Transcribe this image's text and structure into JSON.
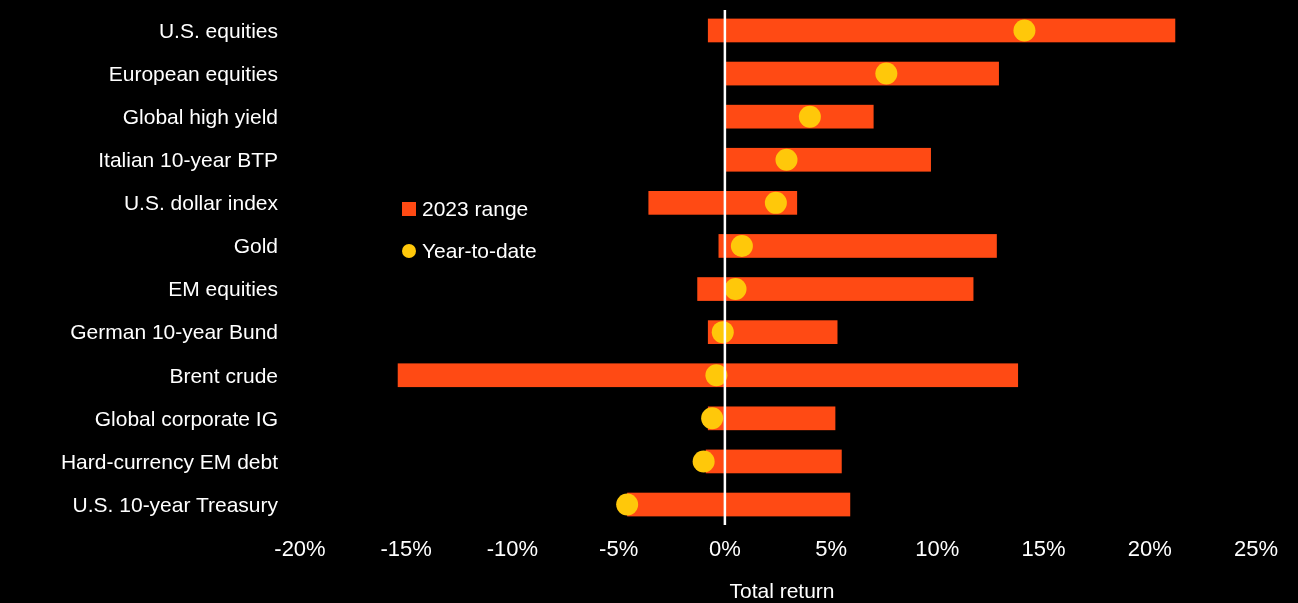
{
  "chart_data": {
    "type": "bar",
    "orientation": "horizontal",
    "xlabel": "Total return",
    "categories": [
      "U.S. equities",
      "European equities",
      "Global high yield",
      "Italian 10-year BTP",
      "U.S. dollar index",
      "Gold",
      "EM equities",
      "German 10-year Bund",
      "Brent crude",
      "Global corporate IG",
      "Hard-currency EM debt",
      "U.S. 10-year Treasury"
    ],
    "series": [
      {
        "name": "2023 range",
        "color": "#ff4a14",
        "base": [
          -0.8,
          0,
          0,
          0,
          -3.6,
          -0.3,
          -1.3,
          -0.8,
          -15.4,
          -0.8,
          -0.9,
          -4.6
        ],
        "values": [
          22.0,
          12.9,
          7.0,
          9.7,
          7.0,
          13.1,
          13.0,
          6.1,
          29.2,
          6.0,
          6.4,
          10.5
        ]
      },
      {
        "name": "Year-to-date",
        "type": "scatter",
        "color": "#ffc80a",
        "marker": "circle",
        "x": [
          "U.S. equities",
          "European equities",
          "Global high yield",
          "Italian 10-year BTP",
          "U.S. dollar index",
          "Gold",
          "EM equities",
          "German 10-year Bund",
          "Brent crude",
          "Global corporate IG",
          "Hard-currency EM debt",
          "U.S. 10-year Treasury"
        ],
        "values": [
          14.1,
          7.6,
          4.0,
          2.9,
          2.4,
          0.8,
          0.5,
          -0.1,
          -0.4,
          -0.6,
          -1.0,
          -4.6
        ]
      }
    ],
    "xlim": [
      -20,
      25
    ],
    "xticks": [
      {
        "value": -20,
        "label": "-20%"
      },
      {
        "value": -15,
        "label": "-15%"
      },
      {
        "value": -10,
        "label": "-10%"
      },
      {
        "value": -5,
        "label": "-5%"
      },
      {
        "value": 0,
        "label": "0%"
      },
      {
        "value": 5,
        "label": "5%"
      },
      {
        "value": 10,
        "label": "10%"
      },
      {
        "value": 15,
        "label": "15%"
      },
      {
        "value": 20,
        "label": "20%"
      },
      {
        "value": 25,
        "label": "25%"
      }
    ],
    "ref_lines": [
      {
        "axis": "x",
        "value": 0,
        "color": "#ffffff"
      }
    ],
    "legend": "left",
    "grid": false
  }
}
